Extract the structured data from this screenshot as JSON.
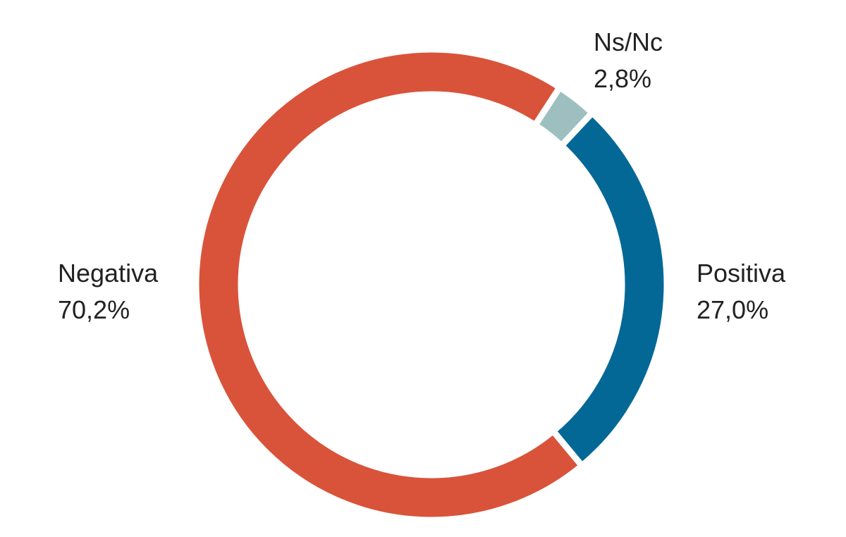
{
  "chart_data": {
    "type": "donut",
    "categories": [
      "Ns/Nc",
      "Positiva",
      "Negativa"
    ],
    "values": [
      2.8,
      27.0,
      70.2
    ],
    "value_labels": [
      "2,8%",
      "27,0%",
      "70,2%"
    ],
    "colors": [
      "#9dbfc0",
      "#046896",
      "#d9533a"
    ]
  }
}
